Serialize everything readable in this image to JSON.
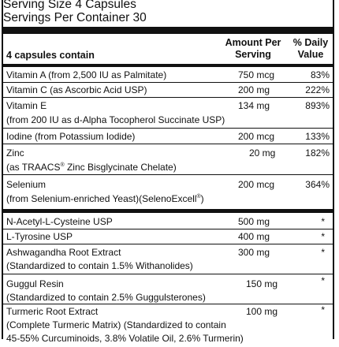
{
  "serving": {
    "size": "Serving Size 4 Capsules",
    "per_container": "Servings Per Container 30"
  },
  "header": {
    "contain": "4 capsules contain",
    "amount_line1": "Amount Per",
    "amount_line2": "Serving",
    "dv_line1": "% Daily",
    "dv_line2": "Value"
  },
  "nutrients": [
    {
      "name": "Vitamin A (from 2,500 IU as Palmitate)",
      "amount": "750 mcg",
      "dv": "83%"
    },
    {
      "name": "Vitamin C (as Ascorbic Acid USP)",
      "amount": "200 mg",
      "dv": "222%"
    },
    {
      "name": "Vitamin E",
      "sub": "(from 200 IU as d-Alpha Tocopherol Succinate USP)",
      "amount": "134 mg",
      "dv": "893%"
    },
    {
      "name": "Iodine (from Potassium Iodide)",
      "amount": "200 mcg",
      "dv": "133%"
    },
    {
      "name": "Zinc",
      "sub_pre": "(as TRAACS",
      "sub_sup": "®",
      "sub_post": " Zinc Bisglycinate Chelate)",
      "amount": "20 mg",
      "dv": "182%"
    },
    {
      "name": "Selenium",
      "sub_pre": "(from Selenium-enriched Yeast)(SelenoExcell",
      "sub_sup": "®",
      "sub_post": ")",
      "amount": "200 mcg",
      "dv": "364%"
    }
  ],
  "others": [
    {
      "name": "N-Acetyl-L-Cysteine USP",
      "amount": "500 mg",
      "dv": "*"
    },
    {
      "name": "L-Tyrosine USP",
      "amount": "400 mg",
      "dv": "*"
    },
    {
      "name": "Ashwagandha Root Extract",
      "sub": "(Standardized to contain 1.5% Withanolides)",
      "amount": "300 mg",
      "dv": "*"
    },
    {
      "name": "Guggul Resin",
      "sub": "(Standardized to contain 2.5% Guggulsterones)",
      "amount": "150 mg",
      "dv": "*"
    },
    {
      "name": "Turmeric Root Extract",
      "sub": "(Complete Turmeric Matrix) (Standardized to contain",
      "sub2": "45-55% Curcuminoids, 3.8% Volatile Oil, 2.6% Turmerin)",
      "amount": "100 mg",
      "dv": "*"
    }
  ]
}
